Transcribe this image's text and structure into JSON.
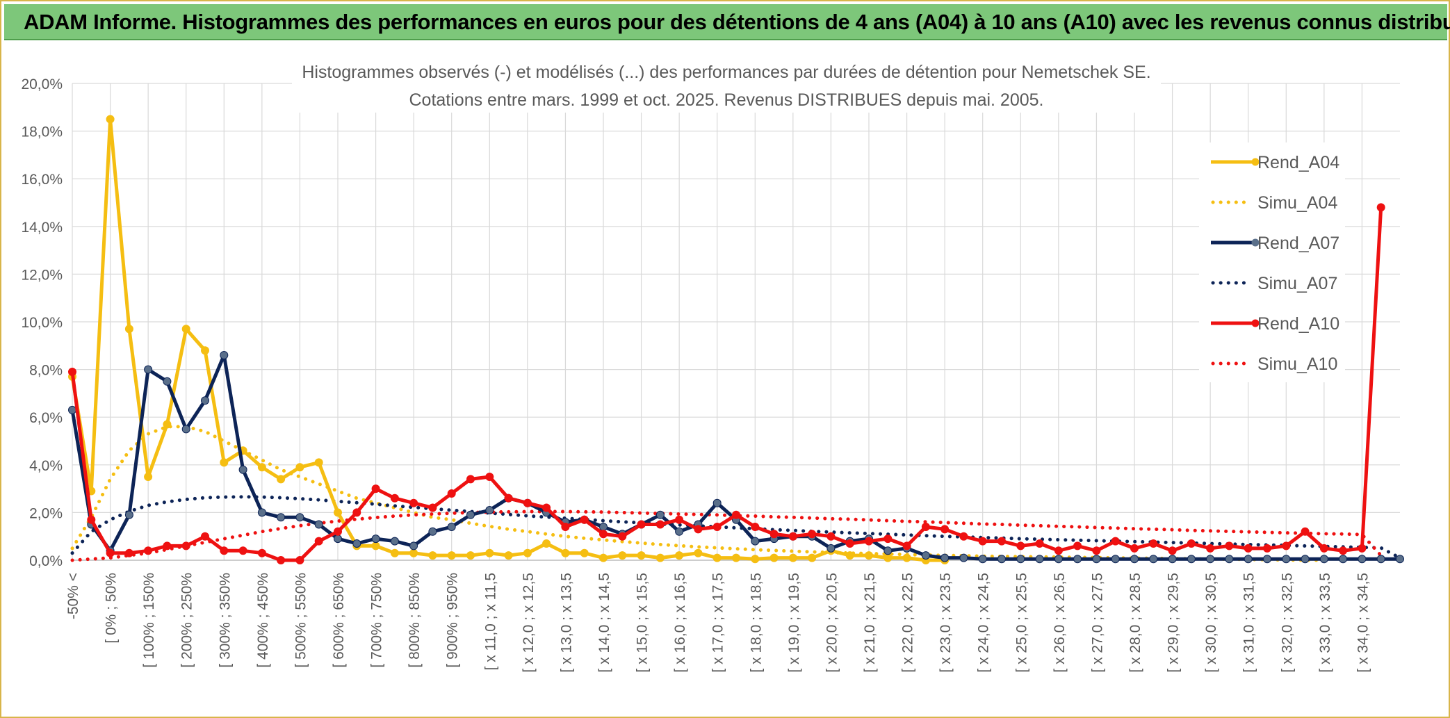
{
  "banner": {
    "title": "ADAM Informe. Histogrammes des performances en euros pour des détentions de 4 ans (A04) à 10 ans (A10) avec les revenus connus distribués"
  },
  "colors": {
    "banner": "#7dc77a",
    "A04": "#f5be12",
    "A07": "#0d2457",
    "A10": "#ee1111",
    "marker_A07": "#5a6f8a",
    "grid": "#d9d9d9"
  },
  "chart_data": {
    "type": "line",
    "title": "Histogrammes observés (-) et modélisés (...) des performances par durées de détention pour Nemetschek SE.",
    "subtitle": "Cotations entre mars. 1999 et oct. 2025. Revenus DISTRIBUES depuis mai. 2005.",
    "ylim": [
      0,
      20
    ],
    "y_tick_labels": [
      "0,0%",
      "2,0%",
      "4,0%",
      "6,0%",
      "8,0%",
      "10,0%",
      "12,0%",
      "14,0%",
      "16,0%",
      "18,0%",
      "20,0%"
    ],
    "grid": true,
    "legend_position": "right",
    "x_tick_labels": [
      "-50% <",
      "[ 0% ; 50%",
      "[ 100% ; 150%",
      "[ 200% ; 250%",
      "[ 300% ; 350%",
      "[ 400% ; 450%",
      "[ 500% ; 550%",
      "[ 600% ; 650%",
      "[ 700% ; 750%",
      "[ 800% ; 850%",
      "[ 900% ; 950%",
      "[ x 11,0 ; x 11,5",
      "[ x 12,0 ; x 12,5",
      "[ x 13,0 ; x 13,5",
      "[ x 14,0 ; x 14,5",
      "[ x 15,0 ; x 15,5",
      "[ x 16,0 ; x 16,5",
      "[ x 17,0 ; x 17,5",
      "[ x 18,0 ; x 18,5",
      "[ x 19,0 ; x 19,5",
      "[ x 20,0 ; x 20,5",
      "[ x 21,0 ; x 21,5",
      "[ x 22,0 ; x 22,5",
      "[ x 23,0 ; x 23,5",
      "[ x 24,0 ; x 24,5",
      "[ x 25,0 ; x 25,5",
      "[ x 26,0 ; x 26,5",
      "[ x 27,0 ; x 27,5",
      "[ x 28,0 ; x 28,5",
      "[ x 29,0 ; x 29,5",
      "[ x 30,0 ; x 30,5",
      "[ x 31,0 ; x 31,5",
      "[ x 32,0 ; x 32,5",
      "[ x 33,0 ; x 33,5",
      "[ x 34,0 ; x 34,5"
    ],
    "series": [
      {
        "name": "Rend_A04",
        "style": "solid",
        "color": "#f5be12",
        "values": [
          7.7,
          2.9,
          18.5,
          9.7,
          3.5,
          5.7,
          9.7,
          8.8,
          4.1,
          4.6,
          3.9,
          3.4,
          3.9,
          4.1,
          2.0,
          0.6,
          0.6,
          0.3,
          0.3,
          0.2,
          0.2,
          0.2,
          0.3,
          0.2,
          0.3,
          0.7,
          0.3,
          0.3,
          0.1,
          0.2,
          0.2,
          0.1,
          0.2,
          0.3,
          0.1,
          0.1,
          0.05,
          0.1,
          0.1,
          0.1,
          0.4,
          0.2,
          0.2,
          0.1,
          0.1,
          0.0,
          0.0
        ]
      },
      {
        "name": "Simu_A04",
        "style": "dotted",
        "color": "#f5be12",
        "values": [
          0.5,
          1.8,
          3.4,
          4.6,
          5.3,
          5.6,
          5.6,
          5.4,
          5.0,
          4.6,
          4.2,
          3.8,
          3.5,
          3.2,
          2.9,
          2.6,
          2.4,
          2.2,
          2.0,
          1.8,
          1.7,
          1.55,
          1.42,
          1.3,
          1.2,
          1.1,
          1.0,
          0.92,
          0.85,
          0.78,
          0.72,
          0.66,
          0.61,
          0.56,
          0.52,
          0.48,
          0.44,
          0.41,
          0.38,
          0.35,
          0.32,
          0.3,
          0.28,
          0.26,
          0.24,
          0.22,
          0.2,
          0.19,
          0.17,
          0.16,
          0.15,
          0.14,
          0.13,
          0.12,
          0.11,
          0.1,
          0.09,
          0.08,
          0.07,
          0.06,
          0.05,
          0.04,
          0.03,
          0.02,
          0.01,
          0.0,
          0.0
        ]
      },
      {
        "name": "Rend_A07",
        "style": "solid",
        "color": "#0d2457",
        "values": [
          6.3,
          1.5,
          0.4,
          1.9,
          8.0,
          7.5,
          5.5,
          6.7,
          8.6,
          3.8,
          2.0,
          1.8,
          1.8,
          1.5,
          0.9,
          0.7,
          0.9,
          0.8,
          0.6,
          1.2,
          1.4,
          1.9,
          2.1,
          2.6,
          2.4,
          2.0,
          1.6,
          1.7,
          1.4,
          1.1,
          1.5,
          1.9,
          1.2,
          1.5,
          2.4,
          1.7,
          0.8,
          0.9,
          1.0,
          1.0,
          0.5,
          0.8,
          0.9,
          0.4,
          0.5,
          0.2,
          0.1,
          0.1,
          0.05,
          0.05,
          0.05,
          0.05,
          0.05,
          0.05,
          0.05,
          0.05,
          0.05,
          0.05,
          0.05,
          0.05,
          0.05,
          0.05,
          0.05,
          0.05,
          0.05,
          0.05,
          0.05,
          0.05,
          0.05,
          0.05,
          0.05
        ]
      },
      {
        "name": "Simu_A07",
        "style": "dotted",
        "color": "#0d2457",
        "values": [
          0.3,
          1.2,
          1.7,
          2.05,
          2.3,
          2.45,
          2.55,
          2.62,
          2.65,
          2.66,
          2.65,
          2.62,
          2.58,
          2.53,
          2.47,
          2.41,
          2.35,
          2.28,
          2.22,
          2.16,
          2.1,
          2.04,
          1.98,
          1.92,
          1.86,
          1.81,
          1.76,
          1.71,
          1.66,
          1.61,
          1.57,
          1.52,
          1.48,
          1.44,
          1.4,
          1.36,
          1.32,
          1.28,
          1.25,
          1.21,
          1.18,
          1.15,
          1.12,
          1.09,
          1.06,
          1.03,
          1.0,
          0.98,
          0.95,
          0.93,
          0.9,
          0.88,
          0.86,
          0.84,
          0.82,
          0.8,
          0.78,
          0.76,
          0.74,
          0.72,
          0.7,
          0.68,
          0.66,
          0.64,
          0.62,
          0.6,
          0.58,
          0.56,
          0.54,
          0.52,
          0.1
        ]
      },
      {
        "name": "Rend_A10",
        "style": "solid",
        "color": "#ee1111",
        "values": [
          7.9,
          1.7,
          0.3,
          0.3,
          0.4,
          0.6,
          0.6,
          1.0,
          0.4,
          0.4,
          0.3,
          0.0,
          0.0,
          0.8,
          1.2,
          2.0,
          3.0,
          2.6,
          2.4,
          2.2,
          2.8,
          3.4,
          3.5,
          2.6,
          2.4,
          2.2,
          1.4,
          1.7,
          1.1,
          1.0,
          1.5,
          1.5,
          1.7,
          1.3,
          1.4,
          1.9,
          1.4,
          1.1,
          1.0,
          1.1,
          1.0,
          0.7,
          0.8,
          0.9,
          0.6,
          1.4,
          1.3,
          1.0,
          0.8,
          0.8,
          0.6,
          0.7,
          0.4,
          0.6,
          0.4,
          0.8,
          0.5,
          0.7,
          0.4,
          0.7,
          0.5,
          0.6,
          0.5,
          0.5,
          0.6,
          1.2,
          0.5,
          0.4,
          0.5,
          14.8
        ]
      },
      {
        "name": "Simu_A10",
        "style": "dotted",
        "color": "#ee1111",
        "values": [
          0.0,
          0.05,
          0.1,
          0.2,
          0.3,
          0.45,
          0.6,
          0.75,
          0.9,
          1.05,
          1.2,
          1.33,
          1.45,
          1.55,
          1.64,
          1.72,
          1.79,
          1.85,
          1.9,
          1.94,
          1.97,
          2.0,
          2.02,
          2.03,
          2.04,
          2.04,
          2.04,
          2.03,
          2.02,
          2.0,
          1.98,
          1.96,
          1.94,
          1.92,
          1.9,
          1.87,
          1.85,
          1.82,
          1.8,
          1.77,
          1.74,
          1.72,
          1.69,
          1.66,
          1.63,
          1.61,
          1.58,
          1.55,
          1.52,
          1.5,
          1.47,
          1.45,
          1.42,
          1.4,
          1.37,
          1.35,
          1.32,
          1.3,
          1.28,
          1.25,
          1.23,
          1.21,
          1.19,
          1.17,
          1.15,
          1.13,
          1.11,
          1.1,
          1.08,
          0.2
        ]
      }
    ]
  }
}
